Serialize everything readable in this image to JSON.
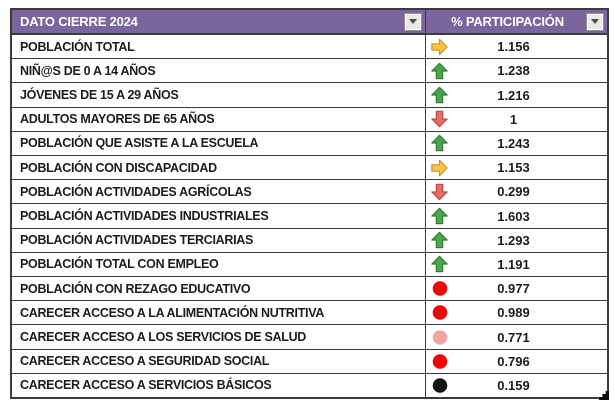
{
  "table": {
    "header": {
      "col1_label": "DATO CIERRE 2024",
      "col2_label": "% PARTICIPACIÓN"
    },
    "rows": [
      {
        "label": "POBLACIÓN TOTAL",
        "icon": "yellow-right-arrow",
        "value": "1.156"
      },
      {
        "label": "NIÑ@S DE 0 A 14 AÑOS",
        "icon": "green-up-arrow",
        "value": "1.238"
      },
      {
        "label": "JÓVENES DE 15 A 29 AÑOS",
        "icon": "green-up-arrow",
        "value": "1.216"
      },
      {
        "label": "ADULTOS MAYORES DE 65 AÑOS",
        "icon": "red-down-arrow",
        "value": "1"
      },
      {
        "label": "POBLACIÓN QUE ASISTE A LA ESCUELA",
        "icon": "green-up-arrow",
        "value": "1.243"
      },
      {
        "label": "POBLACIÓN CON DISCAPACIDAD",
        "icon": "yellow-right-arrow",
        "value": "1.153"
      },
      {
        "label": "POBLACIÓN ACTIVIDADES AGRÍCOLAS",
        "icon": "red-down-arrow",
        "value": "0.299"
      },
      {
        "label": "POBLACIÓN ACTIVIDADES INDUSTRIALES",
        "icon": "green-up-arrow",
        "value": "1.603"
      },
      {
        "label": "POBLACIÓN ACTIVIDADES TERCIARIAS",
        "icon": "green-up-arrow",
        "value": "1.293"
      },
      {
        "label": "POBLACIÓN TOTAL CON EMPLEO",
        "icon": "green-up-arrow",
        "value": "1.191"
      },
      {
        "label": "POBLACIÓN CON REZAGO EDUCATIVO",
        "icon": "red-circle",
        "value": "0.977"
      },
      {
        "label": "CARECER ACCESO  A LA ALIMENTACIÓN NUTRITIVA",
        "icon": "red-circle",
        "value": "0.989"
      },
      {
        "label": "CARECER ACCESO A LOS SERVICIOS DE SALUD",
        "icon": "pink-circle",
        "value": "0.771"
      },
      {
        "label": "CARECER ACCESO A SEGURIDAD SOCIAL",
        "icon": "red-circle",
        "value": "0.796"
      },
      {
        "label": "CARECER ACCESO A SERVICIOS BÁSICOS",
        "icon": "black-circle",
        "value": "0.159"
      }
    ]
  },
  "colors": {
    "header_bg": "#7A659C",
    "header_text": "#FFFFFF",
    "grid_border": "#3B3B3B",
    "filter_bg": "#E9E9E9",
    "filter_border": "#8F8F8F",
    "filter_arrow": "#4A4A4A",
    "yellow_arrow": "#FFC243",
    "yellow_arrow_outline": "#C9952F",
    "green_arrow": "#4CA64C",
    "green_arrow_outline": "#2D7E2D",
    "red_arrow": "#E66C66",
    "red_arrow_outline": "#B94A45",
    "red_circle": "#EE0404",
    "pink_circle": "#F2A3A3",
    "black_circle": "#141414"
  }
}
